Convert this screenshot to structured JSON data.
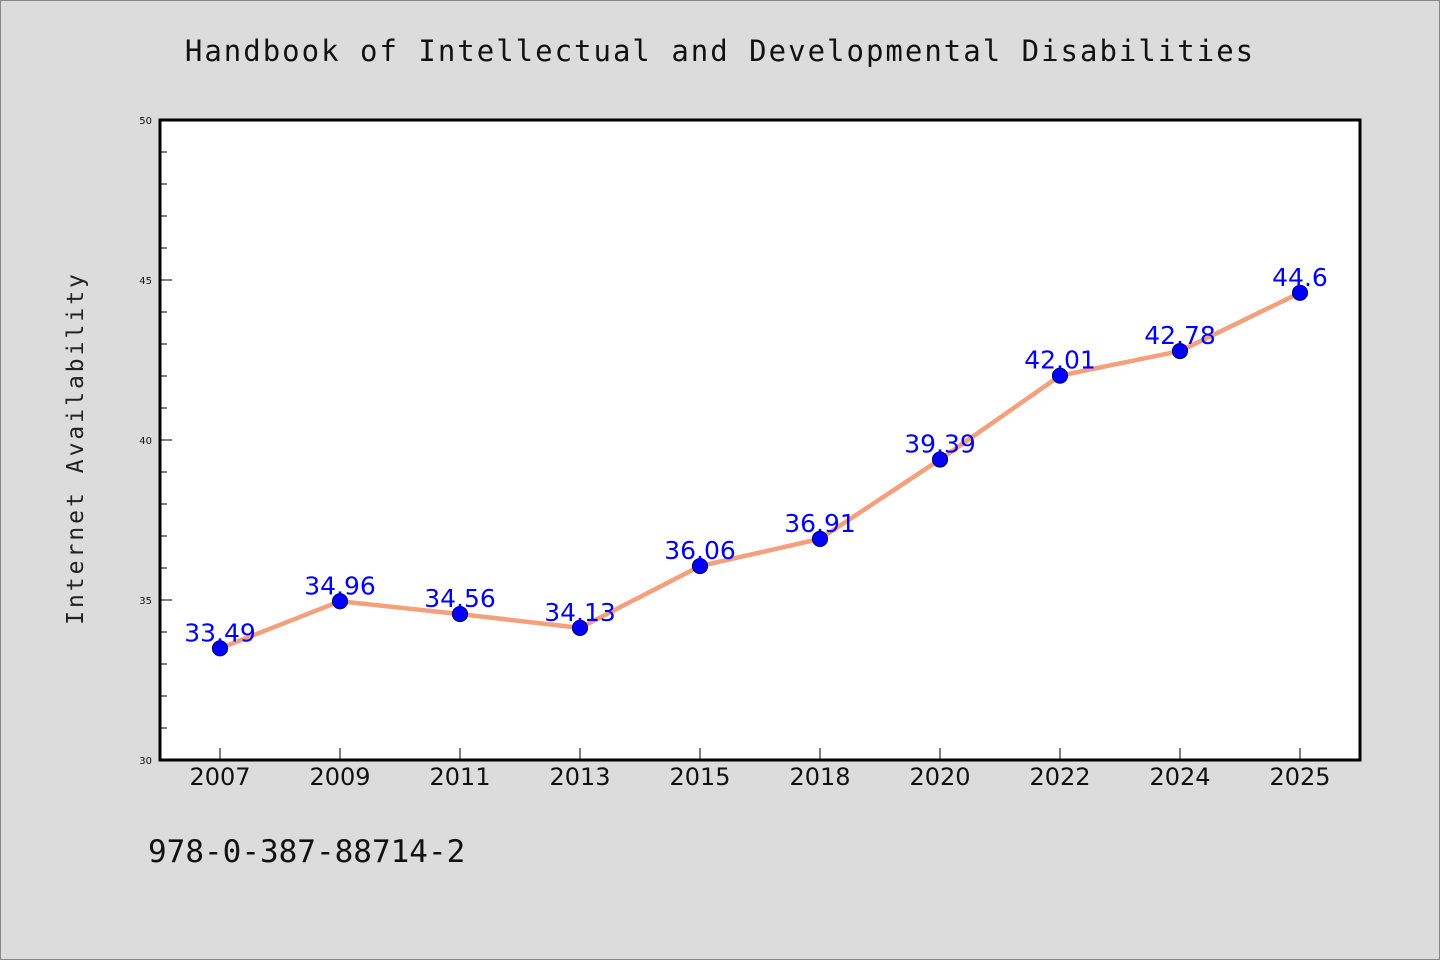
{
  "chart_data": {
    "type": "line",
    "title": "Handbook of Intellectual and Developmental Disabilities",
    "ylabel": "Internet Availability",
    "xlabel": "",
    "categories": [
      "2007",
      "2009",
      "2011",
      "2013",
      "2015",
      "2018",
      "2020",
      "2022",
      "2024",
      "2025"
    ],
    "series": [
      {
        "values": [
          33.49,
          34.96,
          34.56,
          34.13,
          36.06,
          36.91,
          39.39,
          42.01,
          42.78,
          44.6
        ],
        "labels": [
          "33.49",
          "34.96",
          "34.56",
          "34.13",
          "36.06",
          "36.91",
          "39.39",
          "42.01",
          "42.78",
          "44.6"
        ]
      }
    ],
    "ylim": [
      30,
      50
    ],
    "yticks": [
      "30",
      "35",
      "40",
      "45",
      "50"
    ],
    "grid": false,
    "colors": {
      "line": "#f4a07c",
      "marker": "#0000ff",
      "marker_edge": "#000080",
      "label": "#0000ff"
    }
  },
  "footer": {
    "code": "978-0-387-88714-2"
  }
}
